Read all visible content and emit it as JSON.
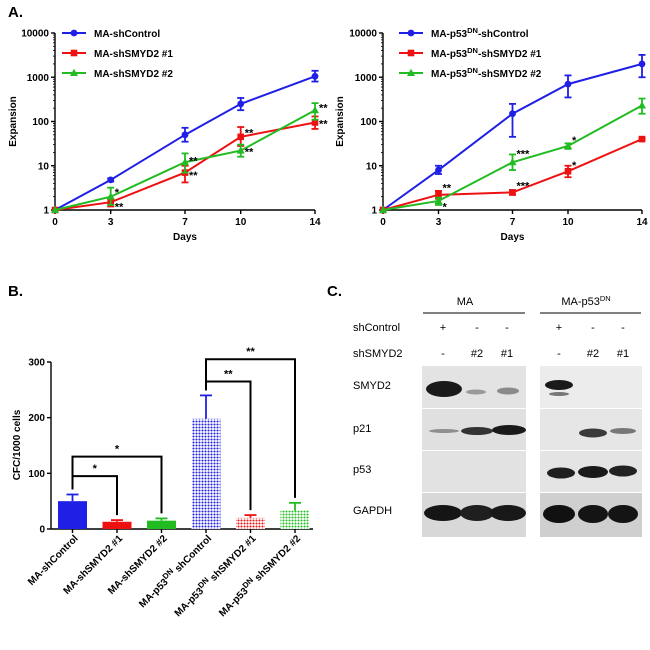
{
  "panels": {
    "a": "A.",
    "b": "B.",
    "c": "C."
  },
  "colors": {
    "blue": "#1f1fe6",
    "red": "#ee1111",
    "green": "#22bb22"
  },
  "chart_data": [
    {
      "type": "line",
      "id": "A-left",
      "xlabel": "Days",
      "ylabel": "Expansion",
      "yscale": "log",
      "ylim": [
        1,
        10000
      ],
      "y_ticks": [
        "1",
        "10",
        "100",
        "1000",
        "10000"
      ],
      "x_ticks": [
        "0",
        "3",
        "7",
        "10",
        "14"
      ],
      "x": [
        0,
        3,
        7,
        10,
        14
      ],
      "series": [
        {
          "name": "MA-shControl",
          "color": "#1f1fe6",
          "marker": "circle",
          "values": [
            1,
            4.8,
            50,
            250,
            1050
          ],
          "err_hi": [
            1,
            5.2,
            72,
            340,
            1400
          ],
          "err_lo": [
            1,
            4.4,
            35,
            180,
            800
          ]
        },
        {
          "name": "MA-shSMYD2 #1",
          "color": "#ee1111",
          "marker": "square",
          "values": [
            1,
            1.5,
            7,
            45,
            95
          ],
          "err_hi": [
            1,
            1.8,
            10,
            75,
            130
          ],
          "err_lo": [
            1,
            1.2,
            4.2,
            28,
            68
          ]
        },
        {
          "name": "MA-shSMYD2 #2",
          "color": "#22bb22",
          "marker": "triangle",
          "values": [
            1,
            2,
            12,
            22,
            180
          ],
          "err_hi": [
            1,
            3.2,
            19,
            30,
            260
          ],
          "err_lo": [
            1,
            1.3,
            7,
            16,
            110
          ]
        }
      ],
      "annotations": [
        {
          "x": 3,
          "y": 2.7,
          "text": "*"
        },
        {
          "x": 3,
          "y": 1.25,
          "text": "**"
        },
        {
          "x": 7,
          "y": 14,
          "text": "**"
        },
        {
          "x": 7,
          "y": 6.5,
          "text": "**"
        },
        {
          "x": 10,
          "y": 60,
          "text": "**"
        },
        {
          "x": 10,
          "y": 22,
          "text": "**"
        },
        {
          "x": 14,
          "y": 220,
          "text": "**"
        },
        {
          "x": 14,
          "y": 95,
          "text": "**"
        }
      ]
    },
    {
      "type": "line",
      "id": "A-right",
      "xlabel": "Days",
      "ylabel": "Expansion",
      "yscale": "log",
      "ylim": [
        1,
        10000
      ],
      "y_ticks": [
        "1",
        "10",
        "100",
        "1000",
        "10000"
      ],
      "x_ticks": [
        "0",
        "3",
        "7",
        "10",
        "14"
      ],
      "x": [
        0,
        3,
        7,
        10,
        14
      ],
      "series": [
        {
          "name": "MA-p53",
          "name_sup": "DN",
          "name_rest": "-shControl",
          "color": "#1f1fe6",
          "marker": "circle",
          "values": [
            1,
            8,
            150,
            700,
            2000
          ],
          "err_hi": [
            1,
            10,
            250,
            1100,
            3200
          ],
          "err_lo": [
            1,
            6.5,
            45,
            350,
            1000
          ]
        },
        {
          "name": "MA-p53",
          "name_sup": "DN",
          "name_rest": "-shSMYD2 #1",
          "color": "#ee1111",
          "marker": "square",
          "values": [
            1,
            2.2,
            2.5,
            7.5,
            40
          ],
          "err_hi": [
            1,
            2.7,
            2.8,
            10,
            42
          ],
          "err_lo": [
            1,
            1.8,
            2.2,
            5.5,
            38
          ]
        },
        {
          "name": "MA-p53",
          "name_sup": "DN",
          "name_rest": "-shSMYD2 #2",
          "color": "#22bb22",
          "marker": "triangle",
          "values": [
            1,
            1.6,
            12,
            28,
            230
          ],
          "err_hi": [
            1,
            1.9,
            18,
            32,
            330
          ],
          "err_lo": [
            1,
            1.3,
            8,
            24,
            150
          ]
        }
      ],
      "annotations": [
        {
          "x": 3,
          "y": 3.4,
          "text": "**"
        },
        {
          "x": 3,
          "y": 1.25,
          "text": "*"
        },
        {
          "x": 7,
          "y": 20,
          "text": "***"
        },
        {
          "x": 7,
          "y": 3.8,
          "text": "***"
        },
        {
          "x": 10,
          "y": 40,
          "text": "*"
        },
        {
          "x": 10,
          "y": 11,
          "text": "*"
        }
      ]
    },
    {
      "type": "bar",
      "id": "B",
      "ylabel": "CFC/1000 cells",
      "ylim": [
        0,
        300
      ],
      "y_ticks": [
        "0",
        "100",
        "200",
        "300"
      ],
      "categories": [
        "MA-shControl",
        "MA-shSMYD2 #1",
        "MA-shSMYD2 #2",
        "MA-p53DN shControl",
        "MA-p53DN shSMYD2 #1",
        "MA-p53DN shSMYD2 #2"
      ],
      "category_labels": [
        {
          "a": "MA-shControl",
          "sup": "",
          "b": ""
        },
        {
          "a": "MA-shSMYD2 #1",
          "sup": "",
          "b": ""
        },
        {
          "a": "MA-shSMYD2 #2",
          "sup": "",
          "b": ""
        },
        {
          "a": "MA-p53",
          "sup": "DN",
          "b": " shControl"
        },
        {
          "a": "MA-p53",
          "sup": "DN",
          "b": " shSMYD2 #1"
        },
        {
          "a": "MA-p53",
          "sup": "DN",
          "b": " shSMYD2 #2"
        }
      ],
      "values": [
        50,
        13,
        15,
        198,
        20,
        33
      ],
      "errors": [
        12,
        3,
        4,
        42,
        5,
        14
      ],
      "colors": [
        "#1f1fe6",
        "#ee1111",
        "#22bb22",
        "#1f1fe6",
        "#ee1111",
        "#22bb22"
      ],
      "patterns": [
        "solid",
        "solid",
        "solid",
        "dots",
        "dots",
        "dots"
      ],
      "significance": [
        {
          "from": 0,
          "to": 1,
          "y": 95,
          "text": "*"
        },
        {
          "from": 0,
          "to": 2,
          "y": 130,
          "text": "*"
        },
        {
          "from": 3,
          "to": 4,
          "y": 265,
          "text": "**"
        },
        {
          "from": 3,
          "to": 5,
          "y": 305,
          "text": "**"
        }
      ]
    }
  ],
  "western_blot": {
    "group1": "MA",
    "group2": "MA-p53",
    "group2_sup": "DN",
    "row_labels": [
      "shControl",
      "shSMYD2"
    ],
    "shcontrol_marks": [
      "+",
      "-",
      "-"
    ],
    "shsmyd2_marks": [
      "-",
      "#2",
      "#1"
    ],
    "proteins": [
      "SMYD2",
      "p21",
      "p53",
      "GAPDH"
    ]
  }
}
